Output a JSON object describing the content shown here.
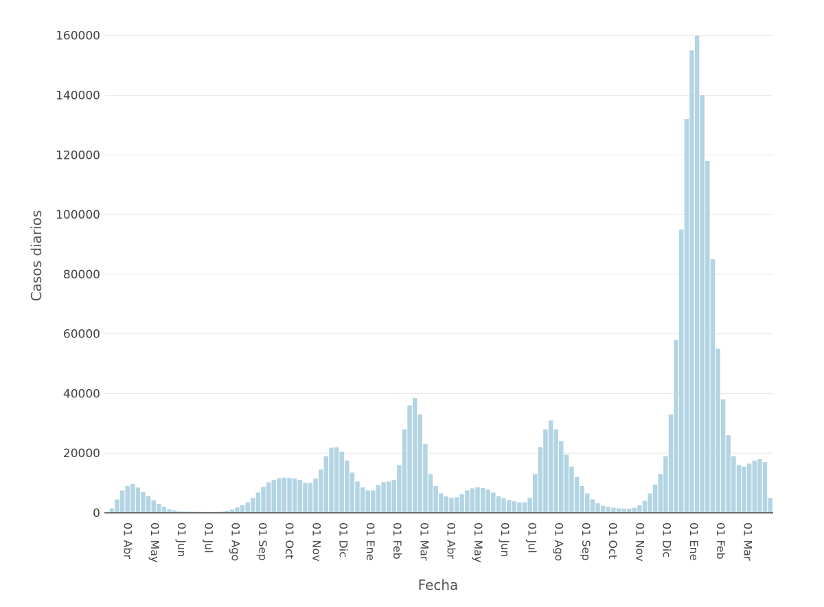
{
  "chart_data": {
    "type": "bar",
    "xlabel": "Fecha",
    "ylabel": "Casos diarios",
    "ylim": [
      0,
      165000
    ],
    "yticks": [
      0,
      20000,
      40000,
      60000,
      80000,
      100000,
      120000,
      140000,
      160000
    ],
    "xticks": [
      "01 Abr",
      "01 May",
      "01 Jun",
      "01 Jul",
      "01 Ago",
      "01 Sep",
      "01 Oct",
      "01 Nov",
      "01 Dic",
      "01 Ene",
      "01 Feb",
      "01 Mar",
      "01 Abr",
      "01 May",
      "01 Jun",
      "01 Jul",
      "01 Ago",
      "01 Sep",
      "01 Oct",
      "01 Nov",
      "01 Dic",
      "01 Ene",
      "01 Feb",
      "01 Mar"
    ],
    "grid": true,
    "bar_color": "#b3d4e3",
    "series": [
      {
        "values": [
          0,
          1500,
          4500,
          7500,
          9000,
          9700,
          8500,
          7000,
          5600,
          4200,
          3000,
          2000,
          1200,
          800,
          500,
          420,
          400,
          380,
          360,
          300,
          300,
          330,
          400,
          700,
          1100,
          1800,
          2600,
          3500,
          5000,
          6800,
          8700,
          10200,
          11000,
          11600,
          11800,
          11700,
          11500,
          11000,
          10000,
          10000,
          11500,
          14500,
          19000,
          21800,
          22000,
          20500,
          17500,
          13500,
          10500,
          8500,
          7500,
          7500,
          9300,
          10300,
          10500,
          11000,
          16000,
          28000,
          36000,
          38500,
          33000,
          23000,
          13000,
          9000,
          6500,
          5500,
          5000,
          5200,
          6200,
          7500,
          8200,
          8600,
          8300,
          7800,
          6800,
          5600,
          4900,
          4300,
          3900,
          3500,
          3500,
          5000,
          13000,
          22000,
          28000,
          31000,
          28000,
          24000,
          19500,
          15500,
          12000,
          9000,
          6500,
          4500,
          3200,
          2400,
          2000,
          1700,
          1500,
          1400,
          1400,
          1700,
          2500,
          4000,
          6500,
          9500,
          13000,
          19000,
          33000,
          58000,
          95000,
          132000,
          155000,
          160000,
          140000,
          118000,
          85000,
          55000,
          38000,
          26000,
          19000,
          16000,
          15500,
          16500,
          17500,
          18000,
          17000,
          5000
        ]
      }
    ]
  }
}
